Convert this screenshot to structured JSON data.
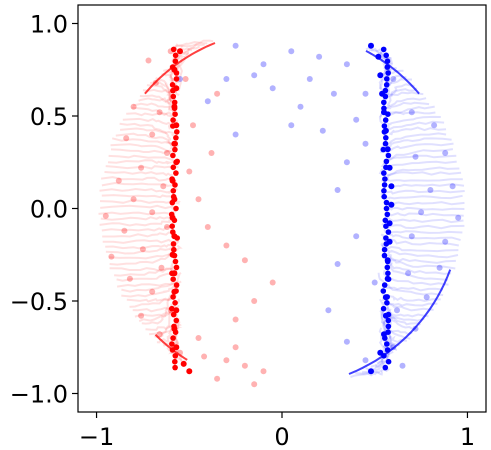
{
  "chart_data": {
    "type": "scatter",
    "title": "",
    "xlabel": "",
    "ylabel": "",
    "xlim": [
      -1.1,
      1.1
    ],
    "ylim": [
      -1.1,
      1.1
    ],
    "x_ticks": [
      -1,
      0,
      1
    ],
    "x_tick_labels": [
      "−1",
      "0",
      "1"
    ],
    "y_ticks": [
      1.0,
      0.5,
      0.0,
      -0.5,
      -1.0
    ],
    "y_tick_labels": [
      "1.0",
      "0.5",
      "0.0",
      "−0.5",
      "−1.0"
    ],
    "grid": false,
    "legend": "none",
    "colors": {
      "red": "#ff0000",
      "blue": "#0000ff"
    },
    "series": [
      {
        "color": "#ff0000",
        "side": -1,
        "column_x": -0.58,
        "boundary_points": [
          [
            -0.55,
            0.85
          ],
          [
            -0.58,
            0.75
          ],
          [
            -0.57,
            0.65
          ],
          [
            -0.58,
            0.55
          ],
          [
            -0.57,
            0.45
          ],
          [
            -0.58,
            0.35
          ],
          [
            -0.57,
            0.25
          ],
          [
            -0.59,
            0.15
          ],
          [
            -0.58,
            0.05
          ],
          [
            -0.59,
            -0.05
          ],
          [
            -0.58,
            -0.15
          ],
          [
            -0.59,
            -0.25
          ],
          [
            -0.58,
            -0.35
          ],
          [
            -0.58,
            -0.45
          ],
          [
            -0.57,
            -0.55
          ],
          [
            -0.58,
            -0.65
          ],
          [
            -0.57,
            -0.75
          ],
          [
            -0.53,
            -0.84
          ],
          [
            -0.5,
            -0.88
          ]
        ],
        "scatter_points": [
          [
            -0.72,
            0.8
          ],
          [
            -0.68,
            0.68
          ],
          [
            -0.8,
            0.55
          ],
          [
            -0.66,
            0.52
          ],
          [
            -0.84,
            0.38
          ],
          [
            -0.7,
            0.4
          ],
          [
            -0.62,
            0.3
          ],
          [
            -0.76,
            0.22
          ],
          [
            -0.88,
            0.15
          ],
          [
            -0.64,
            0.12
          ],
          [
            -0.8,
            0.05
          ],
          [
            -0.95,
            -0.04
          ],
          [
            -0.7,
            -0.02
          ],
          [
            -0.85,
            -0.12
          ],
          [
            -0.62,
            -0.1
          ],
          [
            -0.92,
            -0.26
          ],
          [
            -0.75,
            -0.22
          ],
          [
            -0.65,
            -0.32
          ],
          [
            -0.82,
            -0.38
          ],
          [
            -0.7,
            -0.45
          ],
          [
            -0.6,
            -0.55
          ],
          [
            -0.76,
            -0.58
          ],
          [
            -0.66,
            -0.68
          ],
          [
            -0.55,
            -0.78
          ],
          [
            -0.42,
            -0.8
          ],
          [
            -0.3,
            -0.82
          ],
          [
            -0.2,
            -0.85
          ],
          [
            -0.35,
            -0.92
          ],
          [
            -0.15,
            -0.95
          ],
          [
            -0.45,
            -0.7
          ],
          [
            -0.25,
            -0.75
          ],
          [
            -0.1,
            -0.88
          ],
          [
            -0.5,
            0.2
          ],
          [
            -0.45,
            0.05
          ],
          [
            -0.4,
            -0.1
          ],
          [
            -0.3,
            -0.2
          ],
          [
            -0.2,
            -0.28
          ],
          [
            -0.38,
            0.3
          ],
          [
            -0.48,
            0.45
          ],
          [
            -0.35,
            0.62
          ],
          [
            -0.52,
            0.7
          ],
          [
            -0.6,
            0.85
          ],
          [
            -0.05,
            -0.4
          ],
          [
            -0.15,
            -0.5
          ],
          [
            -0.25,
            -0.6
          ]
        ],
        "arc_range_deg": [
          112,
          238
        ]
      },
      {
        "color": "#0000ff",
        "side": 1,
        "column_x": 0.56,
        "boundary_points": [
          [
            0.48,
            0.88
          ],
          [
            0.52,
            0.82
          ],
          [
            0.53,
            0.72
          ],
          [
            0.54,
            0.62
          ],
          [
            0.55,
            0.52
          ],
          [
            0.56,
            0.42
          ],
          [
            0.57,
            0.32
          ],
          [
            0.58,
            0.22
          ],
          [
            0.59,
            0.12
          ],
          [
            0.59,
            0.02
          ],
          [
            0.58,
            -0.08
          ],
          [
            0.58,
            -0.18
          ],
          [
            0.57,
            -0.28
          ],
          [
            0.57,
            -0.38
          ],
          [
            0.56,
            -0.48
          ],
          [
            0.56,
            -0.58
          ],
          [
            0.55,
            -0.68
          ],
          [
            0.53,
            -0.78
          ],
          [
            0.48,
            -0.88
          ]
        ],
        "scatter_points": [
          [
            -0.55,
            0.7
          ],
          [
            -0.25,
            0.88
          ],
          [
            -0.1,
            0.78
          ],
          [
            0.05,
            0.85
          ],
          [
            0.2,
            0.82
          ],
          [
            0.35,
            0.78
          ],
          [
            -0.3,
            0.7
          ],
          [
            -0.05,
            0.65
          ],
          [
            0.15,
            0.7
          ],
          [
            0.28,
            0.62
          ],
          [
            -0.25,
            0.4
          ],
          [
            0.05,
            0.45
          ],
          [
            0.22,
            0.42
          ],
          [
            0.4,
            0.48
          ],
          [
            0.7,
            0.52
          ],
          [
            0.82,
            0.45
          ],
          [
            0.88,
            0.3
          ],
          [
            0.72,
            0.28
          ],
          [
            0.92,
            0.12
          ],
          [
            0.8,
            0.1
          ],
          [
            0.95,
            -0.05
          ],
          [
            0.75,
            -0.02
          ],
          [
            0.88,
            -0.18
          ],
          [
            0.7,
            -0.15
          ],
          [
            0.85,
            -0.32
          ],
          [
            0.68,
            -0.35
          ],
          [
            0.78,
            -0.48
          ],
          [
            0.62,
            -0.55
          ],
          [
            0.72,
            -0.65
          ],
          [
            0.6,
            -0.75
          ],
          [
            0.45,
            -0.82
          ],
          [
            0.35,
            -0.72
          ],
          [
            0.25,
            -0.55
          ],
          [
            0.3,
            -0.3
          ],
          [
            0.4,
            -0.15
          ],
          [
            0.3,
            0.1
          ],
          [
            0.35,
            0.25
          ],
          [
            0.45,
            0.35
          ],
          [
            0.1,
            0.55
          ],
          [
            -0.4,
            0.58
          ],
          [
            -0.15,
            0.72
          ],
          [
            0.45,
            0.62
          ],
          [
            0.6,
            0.7
          ],
          [
            0.65,
            -0.85
          ],
          [
            0.5,
            -0.4
          ]
        ],
        "arc_range_deg": [
          -68,
          62
        ]
      }
    ]
  }
}
